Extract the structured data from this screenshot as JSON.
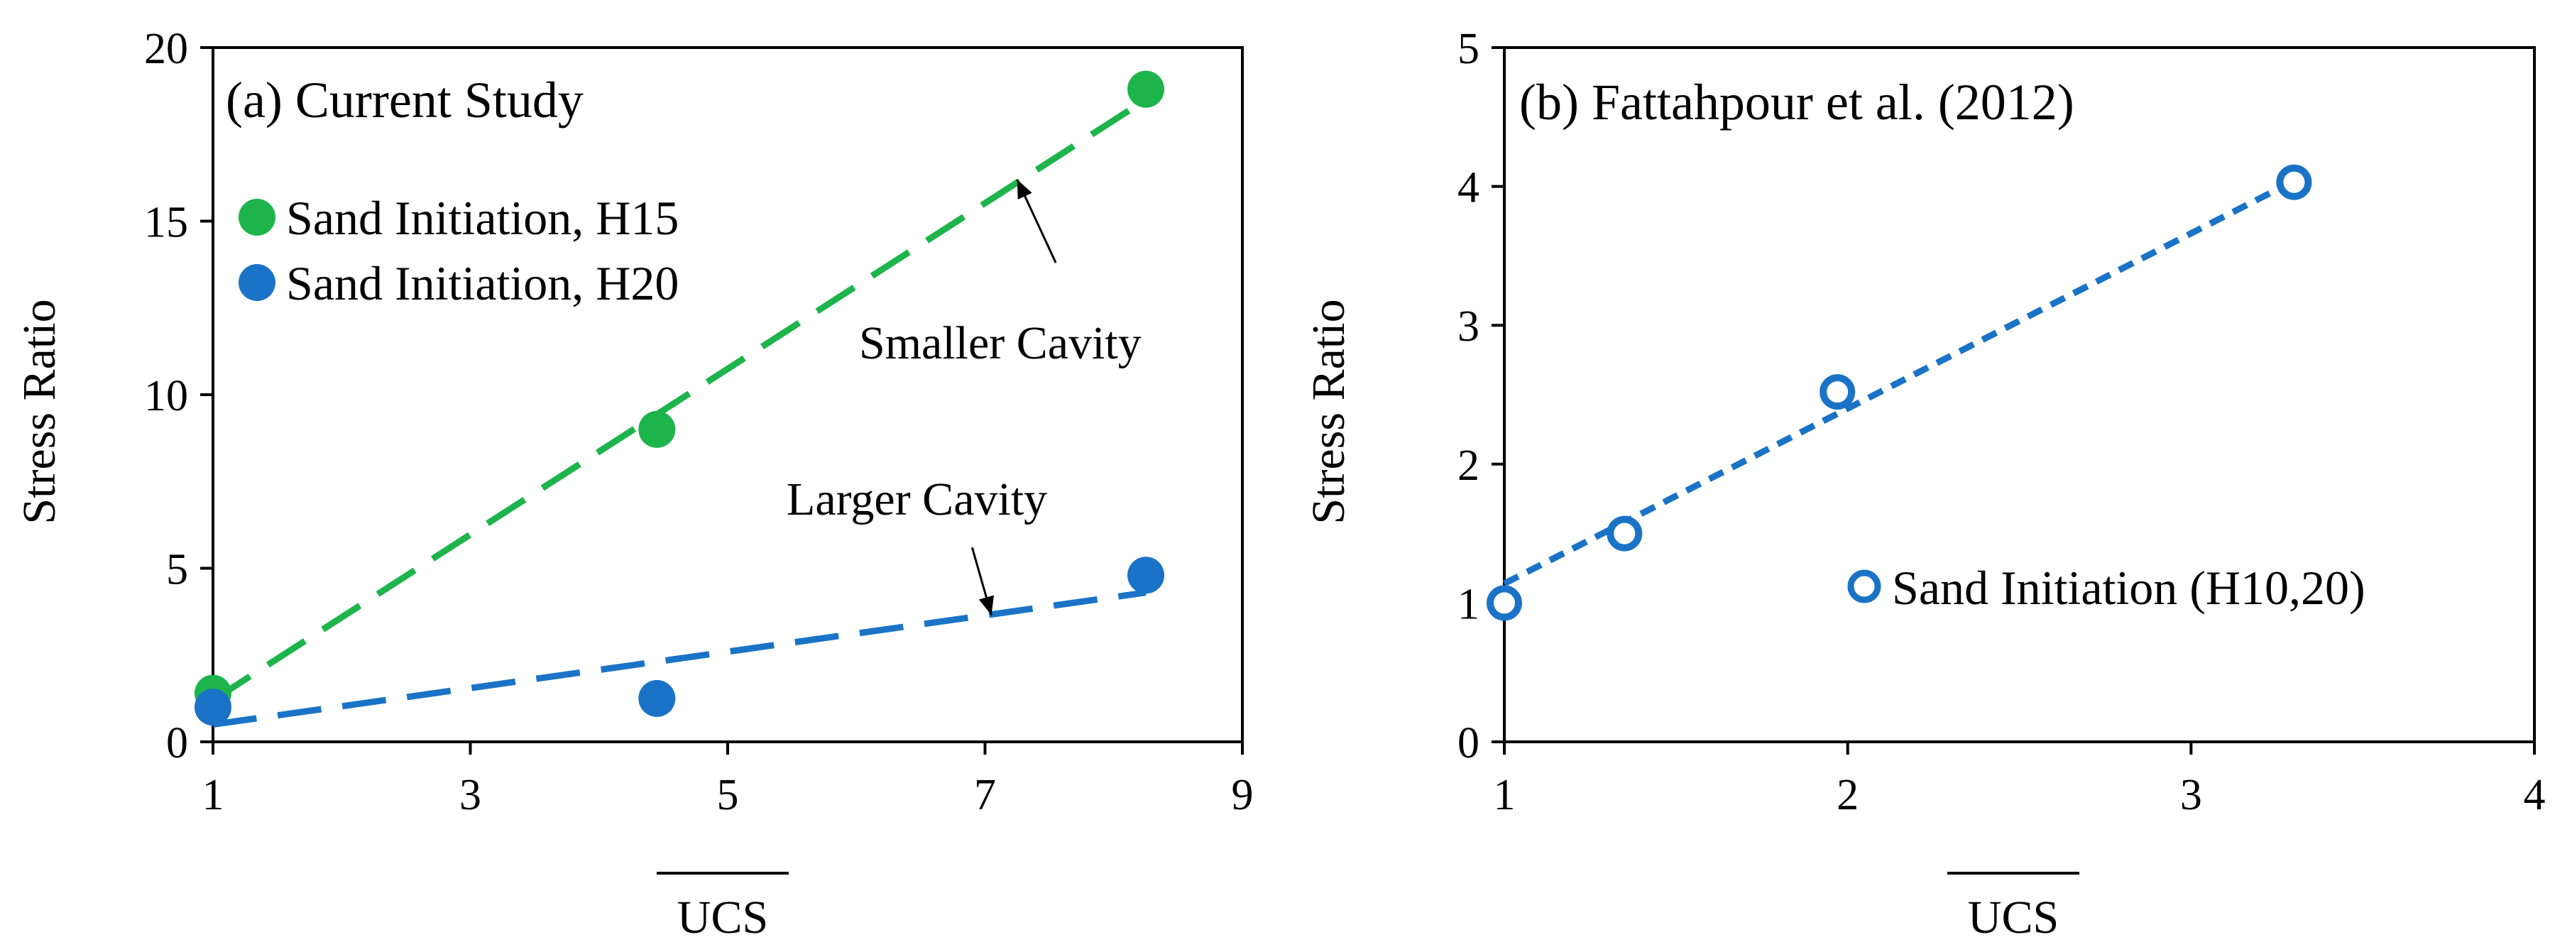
{
  "chart_data": [
    {
      "type": "scatter",
      "title": "(a) Current Study",
      "xlabel": "UCS",
      "ylabel": "Stress Ratio",
      "xlim": [
        1,
        9
      ],
      "ylim": [
        0,
        20
      ],
      "xticks": [
        "1",
        "3",
        "5",
        "7",
        "9"
      ],
      "yticks": [
        "0",
        "5",
        "10",
        "15",
        "20"
      ],
      "grid": false,
      "legend_position": "top-left",
      "series": [
        {
          "name": "Sand Initiation, H15",
          "color": "#1db44b",
          "marker": "filled-circle",
          "x": [
            1.0,
            4.45,
            8.25
          ],
          "y": [
            1.4,
            9.0,
            18.8
          ],
          "trendline": {
            "x": [
              1.0,
              8.25
            ],
            "y": [
              1.2,
              18.5
            ]
          }
        },
        {
          "name": "Sand Initiation, H20",
          "color": "#1a73c6",
          "marker": "filled-circle",
          "x": [
            1.0,
            4.45,
            8.25
          ],
          "y": [
            1.0,
            1.25,
            4.8
          ],
          "trendline": {
            "x": [
              1.0,
              8.25
            ],
            "y": [
              0.5,
              4.3
            ]
          }
        }
      ],
      "annotations": [
        {
          "text": "Smaller Cavity",
          "target_series": "Sand Initiation, H15",
          "arrow_to": [
            7.25,
            16.2
          ],
          "arrow_from": [
            7.55,
            13.8
          ]
        },
        {
          "text": "Larger Cavity",
          "target_series": "Sand Initiation, H20",
          "arrow_to": [
            7.05,
            3.65
          ],
          "arrow_from": [
            6.9,
            5.6
          ]
        }
      ]
    },
    {
      "type": "scatter",
      "title": "(b) Fattahpour et al. (2012)",
      "xlabel": "UCS",
      "ylabel": "Stress Ratio",
      "xlim": [
        1,
        4
      ],
      "ylim": [
        0,
        5
      ],
      "xticks": [
        "1",
        "2",
        "3",
        "4"
      ],
      "yticks": [
        "0",
        "1",
        "2",
        "3",
        "4",
        "5"
      ],
      "grid": false,
      "legend_position": "bottom-right",
      "series": [
        {
          "name": "Sand Initiation (H10,20)",
          "color": "#1a73c6",
          "marker": "open-circle",
          "x": [
            1.0,
            1.35,
            1.97,
            3.3
          ],
          "y": [
            1.0,
            1.5,
            2.52,
            4.03
          ],
          "trendline": {
            "x": [
              1.0,
              3.3
            ],
            "y": [
              1.14,
              4.04
            ]
          }
        }
      ]
    }
  ]
}
